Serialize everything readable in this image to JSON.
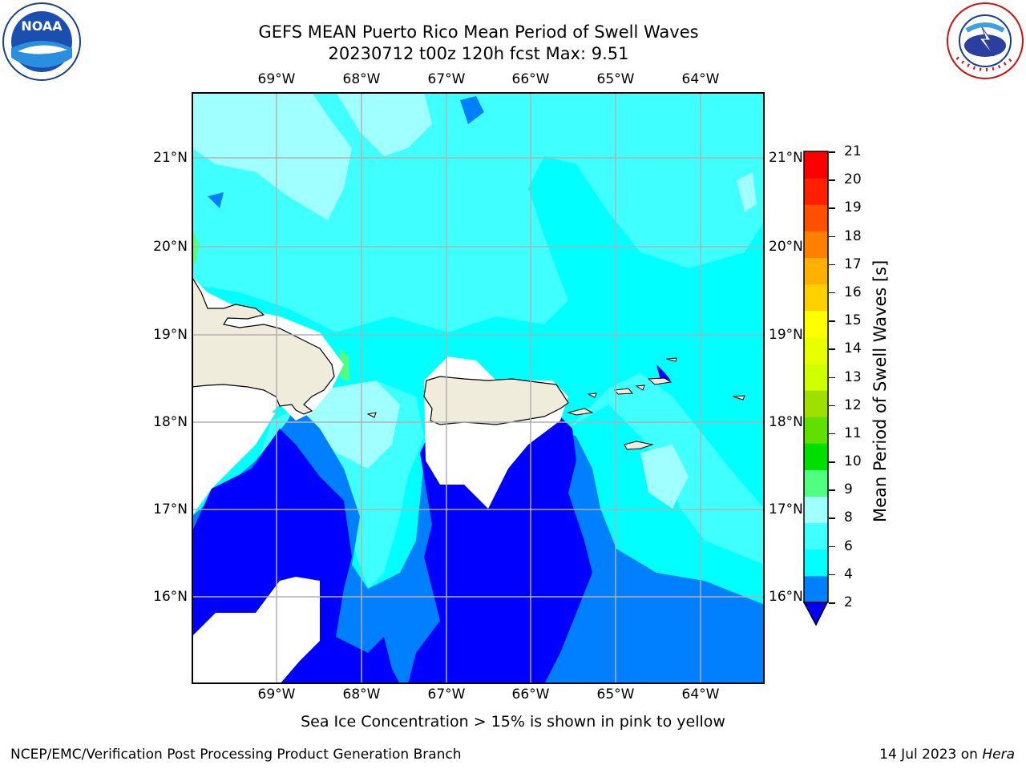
{
  "title": {
    "line1": "GEFS MEAN Puerto Rico Mean Period of Swell Waves",
    "line2": "20230712 t00z 120h fcst   Max: 9.51"
  },
  "map": {
    "lon_range": [
      -70.0,
      -63.25
    ],
    "lat_range": [
      15.0,
      21.75
    ],
    "x_ticks": [
      "69°W",
      "68°W",
      "67°W",
      "66°W",
      "65°W",
      "64°W"
    ],
    "y_ticks": [
      "21°N",
      "20°N",
      "19°N",
      "18°N",
      "17°N",
      "16°N"
    ],
    "grid": true
  },
  "colorbar": {
    "label": "Mean Period of Swell Waves [s]",
    "ticks": [
      "21",
      "20",
      "19",
      "18",
      "17",
      "16",
      "15",
      "14",
      "13",
      "12",
      "11",
      "10",
      "9",
      "8",
      "6",
      "4",
      "2"
    ],
    "colors_bottom_to_top": [
      "#0000ff",
      "#0080ff",
      "#00ffff",
      "#40ffff",
      "#a0ffff",
      "#50ff80",
      "#00e000",
      "#60e000",
      "#a0e000",
      "#d0ff00",
      "#e8ff00",
      "#ffff00",
      "#ffd000",
      "#ffb000",
      "#ff8000",
      "#ff5000",
      "#ff2000",
      "#ff0000"
    ]
  },
  "footer": {
    "note": "Sea Ice Concentration > 15% is shown in pink to yellow",
    "credit_left": "NCEP/EMC/Verification Post Processing Product Generation Branch",
    "credit_right_prefix": "14 Jul 2023 on ",
    "credit_right_host": "Hera"
  },
  "logos": {
    "noaa": "NOAA",
    "nws": "NATIONAL WEATHER SERVICE"
  }
}
